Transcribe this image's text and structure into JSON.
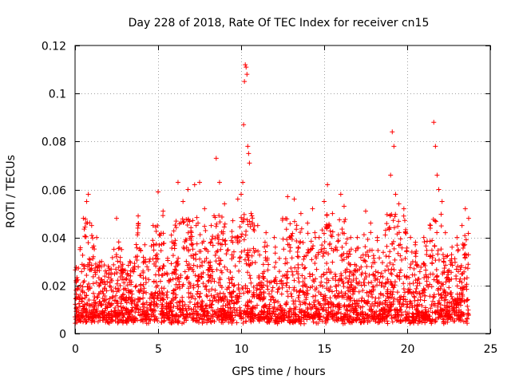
{
  "chart_data": {
    "type": "scatter",
    "title": "Day 228 of 2018, Rate Of TEC Index for receiver cn15",
    "xlabel": "GPS time / hours",
    "ylabel": "ROTI / TECUs",
    "xlim": [
      0,
      25
    ],
    "ylim": [
      0,
      0.12
    ],
    "xticks": [
      0,
      5,
      10,
      15,
      20,
      25
    ],
    "yticks": [
      0,
      0.02,
      0.04,
      0.06,
      0.08,
      0.1,
      0.12
    ],
    "xtick_labels": [
      "0",
      "5",
      "10",
      "15",
      "20",
      "25"
    ],
    "ytick_labels": [
      "0",
      "0.02",
      "0.04",
      "0.06",
      "0.08",
      "0.1",
      "0.12"
    ],
    "grid": true,
    "marker": "+",
    "color": "#ff0000",
    "x_data_range": [
      0,
      23.7
    ],
    "series": [
      {
        "name": "ROTI",
        "points": [
          [
            0.1,
            0.022
          ],
          [
            0.3,
            0.035
          ],
          [
            0.5,
            0.048
          ],
          [
            0.7,
            0.055
          ],
          [
            0.8,
            0.058
          ],
          [
            1.0,
            0.045
          ],
          [
            1.3,
            0.04
          ],
          [
            1.6,
            0.03
          ],
          [
            2.0,
            0.028
          ],
          [
            2.5,
            0.048
          ],
          [
            2.8,
            0.035
          ],
          [
            3.3,
            0.03
          ],
          [
            3.8,
            0.049
          ],
          [
            4.2,
            0.037
          ],
          [
            4.7,
            0.045
          ],
          [
            5.0,
            0.059
          ],
          [
            5.3,
            0.051
          ],
          [
            5.8,
            0.041
          ],
          [
            6.2,
            0.063
          ],
          [
            6.5,
            0.055
          ],
          [
            6.8,
            0.06
          ],
          [
            7.2,
            0.062
          ],
          [
            7.5,
            0.063
          ],
          [
            7.8,
            0.052
          ],
          [
            8.2,
            0.045
          ],
          [
            8.5,
            0.073
          ],
          [
            8.7,
            0.063
          ],
          [
            9.0,
            0.054
          ],
          [
            9.5,
            0.047
          ],
          [
            9.8,
            0.056
          ],
          [
            10.0,
            0.058
          ],
          [
            10.1,
            0.063
          ],
          [
            10.15,
            0.087
          ],
          [
            10.2,
            0.105
          ],
          [
            10.25,
            0.112
          ],
          [
            10.3,
            0.111
          ],
          [
            10.35,
            0.108
          ],
          [
            10.4,
            0.078
          ],
          [
            10.45,
            0.075
          ],
          [
            10.5,
            0.071
          ],
          [
            10.6,
            0.05
          ],
          [
            11.0,
            0.045
          ],
          [
            11.5,
            0.042
          ],
          [
            12.0,
            0.04
          ],
          [
            12.5,
            0.048
          ],
          [
            12.8,
            0.057
          ],
          [
            13.2,
            0.056
          ],
          [
            13.6,
            0.05
          ],
          [
            14.0,
            0.046
          ],
          [
            14.3,
            0.052
          ],
          [
            14.7,
            0.04
          ],
          [
            15.0,
            0.055
          ],
          [
            15.2,
            0.062
          ],
          [
            15.5,
            0.05
          ],
          [
            16.0,
            0.058
          ],
          [
            16.2,
            0.053
          ],
          [
            16.6,
            0.04
          ],
          [
            17.0,
            0.04
          ],
          [
            17.5,
            0.051
          ],
          [
            17.8,
            0.046
          ],
          [
            18.2,
            0.04
          ],
          [
            18.7,
            0.043
          ],
          [
            19.0,
            0.066
          ],
          [
            19.1,
            0.084
          ],
          [
            19.2,
            0.078
          ],
          [
            19.3,
            0.058
          ],
          [
            19.5,
            0.054
          ],
          [
            19.8,
            0.052
          ],
          [
            20.2,
            0.04
          ],
          [
            20.5,
            0.038
          ],
          [
            21.0,
            0.04
          ],
          [
            21.4,
            0.045
          ],
          [
            21.6,
            0.088
          ],
          [
            21.7,
            0.078
          ],
          [
            21.8,
            0.066
          ],
          [
            21.9,
            0.06
          ],
          [
            22.1,
            0.055
          ],
          [
            22.3,
            0.042
          ],
          [
            22.7,
            0.036
          ],
          [
            23.0,
            0.04
          ],
          [
            23.3,
            0.045
          ],
          [
            23.5,
            0.052
          ],
          [
            23.7,
            0.048
          ],
          [
            0.2,
            0.015
          ],
          [
            0.6,
            0.012
          ],
          [
            1.1,
            0.01
          ],
          [
            1.5,
            0.008
          ],
          [
            2.2,
            0.012
          ],
          [
            2.7,
            0.006
          ],
          [
            3.1,
            0.01
          ],
          [
            3.6,
            0.014
          ],
          [
            4.1,
            0.011
          ],
          [
            4.6,
            0.013
          ],
          [
            5.2,
            0.012
          ],
          [
            5.7,
            0.009
          ],
          [
            6.3,
            0.01
          ],
          [
            6.9,
            0.008
          ],
          [
            7.4,
            0.011
          ],
          [
            8.0,
            0.009
          ],
          [
            8.6,
            0.01
          ],
          [
            9.2,
            0.012
          ],
          [
            9.7,
            0.013
          ],
          [
            10.7,
            0.009
          ],
          [
            11.2,
            0.007
          ],
          [
            11.7,
            0.006
          ],
          [
            12.2,
            0.01
          ],
          [
            12.7,
            0.012
          ],
          [
            13.3,
            0.011
          ],
          [
            13.8,
            0.009
          ],
          [
            14.4,
            0.012
          ],
          [
            14.9,
            0.01
          ],
          [
            15.4,
            0.011
          ],
          [
            15.9,
            0.01
          ],
          [
            16.4,
            0.008
          ],
          [
            16.9,
            0.006
          ],
          [
            17.3,
            0.009
          ],
          [
            17.9,
            0.007
          ],
          [
            18.4,
            0.006
          ],
          [
            18.9,
            0.008
          ],
          [
            19.4,
            0.01
          ],
          [
            19.9,
            0.009
          ],
          [
            20.4,
            0.007
          ],
          [
            20.9,
            0.009
          ],
          [
            21.2,
            0.008
          ],
          [
            22.0,
            0.01
          ],
          [
            22.5,
            0.009
          ],
          [
            23.1,
            0.012
          ],
          [
            23.6,
            0.014
          ]
        ]
      }
    ]
  }
}
